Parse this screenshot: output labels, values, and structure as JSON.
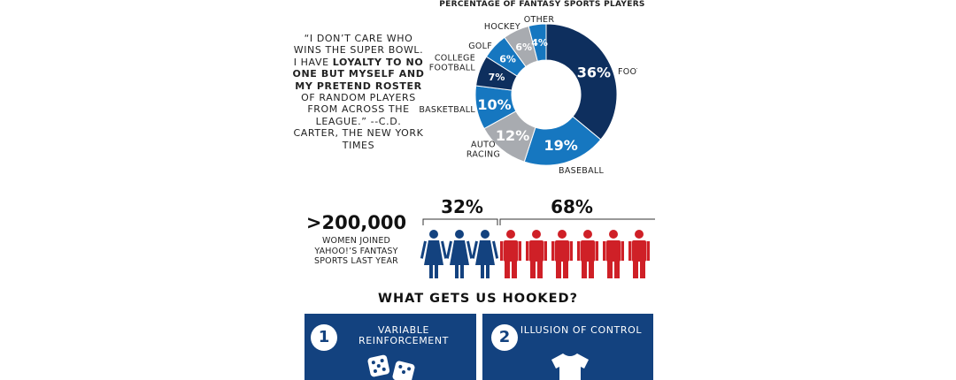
{
  "quote": {
    "line1": "“I DON’T CARE WHO WINS THE SUPER BOWL. I HAVE",
    "bold": "LOYALTY TO NO ONE BUT MYSELF AND MY PRETEND ROSTER",
    "line2": "OF RANDOM PLAYERS FROM ACROSS THE LEAGUE.”",
    "attribution": "--C.D. CARTER, THE NEW YORK TIMES"
  },
  "chart_data": [
    {
      "type": "pie",
      "title": "PERCENTAGE OF FANTASY SPORTS PLAYERS",
      "categories": [
        "FOOTBALL",
        "BASEBALL",
        "AUTO RACING",
        "BASKETBALL",
        "COLLEGE FOOTBALL",
        "GOLF",
        "HOCKEY",
        "OTHER"
      ],
      "values": [
        36,
        19,
        12,
        10,
        7,
        6,
        6,
        4
      ],
      "value_labels": [
        "36%",
        "19%",
        "12%",
        "10%",
        "7%",
        "6%",
        "6%",
        "4%"
      ],
      "colors": [
        "#0e2f5e",
        "#1677c0",
        "#a8abb0",
        "#1677c0",
        "#0e2f5e",
        "#1677c0",
        "#a8abb0",
        "#1677c0"
      ]
    },
    {
      "type": "bar",
      "categories": [
        "women",
        "men"
      ],
      "values": [
        32,
        68
      ],
      "value_labels": [
        "32%",
        "68%"
      ],
      "icon_counts": [
        3,
        6
      ],
      "colors": [
        "#13427f",
        "#cf2027"
      ]
    }
  ],
  "women_stat": {
    "value": ">200,000",
    "caption": "WOMEN JOINED YAHOO!’S FANTASY SPORTS LAST YEAR"
  },
  "hooked": {
    "title": "WHAT GETS US HOOKED?",
    "items": [
      {
        "number": "1",
        "label": "VARIABLE REINFORCEMENT",
        "icon": "dice-icon"
      },
      {
        "number": "2",
        "label": "ILLUSION OF CONTROL",
        "icon": "jersey-icon"
      }
    ]
  }
}
